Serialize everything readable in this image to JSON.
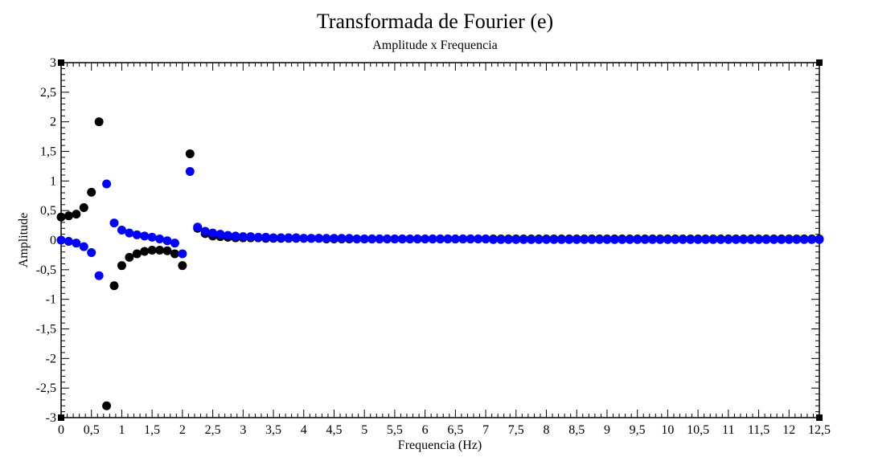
{
  "chart_data": {
    "type": "scatter",
    "title": "Transformada de Fourier (e)",
    "subtitle": "Amplitude x Frequencia",
    "xlabel": "Frequencia (Hz)",
    "ylabel": "Amplitude",
    "xlim": [
      0,
      12.5
    ],
    "ylim": [
      -3,
      3
    ],
    "x_ticks": [
      0,
      0.5,
      1,
      1.5,
      2,
      2.5,
      3,
      3.5,
      4,
      4.5,
      5,
      5.5,
      6,
      6.5,
      7,
      7.5,
      8,
      8.5,
      9,
      9.5,
      10,
      10.5,
      11,
      11.5,
      12,
      12.5
    ],
    "x_tick_labels": [
      "0",
      "0,5",
      "1",
      "1,5",
      "2",
      "2,5",
      "3",
      "3,5",
      "4",
      "4,5",
      "5",
      "5,5",
      "6",
      "6,5",
      "7",
      "7,5",
      "8",
      "8,5",
      "9",
      "9,5",
      "10",
      "10,5",
      "11",
      "11,5",
      "12",
      "12,5"
    ],
    "y_ticks": [
      3,
      2.5,
      2,
      1.5,
      1,
      0.5,
      0,
      -0.5,
      -1,
      -1.5,
      -2,
      -2.5,
      -3
    ],
    "y_tick_labels": [
      "3",
      "2,5",
      "2",
      "1,5",
      "1",
      "0,5",
      "0",
      "-0,5",
      "-1",
      "-1,5",
      "-2",
      "-2,5",
      "-3"
    ],
    "grid": false,
    "x_step": 0.125,
    "series": [
      {
        "color": "#000000",
        "values": [
          0.39,
          0.41,
          0.44,
          0.55,
          0.81,
          2.0,
          -2.8,
          -0.77,
          -0.43,
          -0.29,
          -0.23,
          -0.19,
          -0.17,
          -0.17,
          -0.18,
          -0.23,
          -0.43,
          1.46,
          0.2,
          0.11,
          0.07,
          0.06,
          0.05,
          0.04,
          0.04,
          0.04,
          0.04,
          0.03,
          0.03,
          0.03,
          0.03,
          0.03,
          0.03,
          0.03,
          0.03,
          0.02,
          0.02,
          0.02,
          0.02,
          0.02,
          0.02,
          0.02,
          0.02,
          0.02,
          0.02,
          0.02,
          0.02,
          0.02,
          0.02,
          0.02,
          0.02,
          0.02,
          0.02,
          0.02,
          0.02,
          0.02,
          0.02,
          0.02,
          0.02,
          0.02,
          0.02,
          0.02,
          0.02,
          0.02,
          0.02,
          0.02,
          0.02,
          0.02,
          0.02,
          0.02,
          0.02,
          0.02,
          0.02,
          0.02,
          0.02,
          0.02,
          0.02,
          0.02,
          0.02,
          0.02,
          0.02,
          0.02,
          0.02,
          0.02,
          0.02,
          0.02,
          0.02,
          0.02,
          0.02,
          0.02,
          0.02,
          0.02,
          0.02,
          0.02,
          0.02,
          0.02,
          0.02,
          0.02,
          0.02,
          0.02,
          0.02
        ]
      },
      {
        "color": "#0000ff",
        "values": [
          0.0,
          -0.02,
          -0.05,
          -0.11,
          -0.21,
          -0.6,
          0.95,
          0.29,
          0.17,
          0.12,
          0.09,
          0.07,
          0.05,
          0.02,
          -0.01,
          -0.05,
          -0.23,
          1.16,
          0.22,
          0.15,
          0.12,
          0.1,
          0.08,
          0.07,
          0.06,
          0.06,
          0.05,
          0.05,
          0.04,
          0.04,
          0.04,
          0.04,
          0.03,
          0.03,
          0.03,
          0.03,
          0.03,
          0.03,
          0.03,
          0.02,
          0.02,
          0.02,
          0.02,
          0.02,
          0.02,
          0.02,
          0.02,
          0.02,
          0.02,
          0.02,
          0.02,
          0.02,
          0.02,
          0.02,
          0.02,
          0.02,
          0.02,
          0.01,
          0.01,
          0.01,
          0.01,
          0.01,
          0.01,
          0.01,
          0.01,
          0.01,
          0.01,
          0.01,
          0.01,
          0.01,
          0.01,
          0.01,
          0.01,
          0.01,
          0.01,
          0.01,
          0.01,
          0.01,
          0.01,
          0.01,
          0.01,
          0.01,
          0.01,
          0.01,
          0.01,
          0.01,
          0.01,
          0.01,
          0.01,
          0.01,
          0.01,
          0.01,
          0.01,
          0.01,
          0.01,
          0.01,
          0.01,
          0.01,
          0.01,
          0.01,
          0.01
        ]
      }
    ]
  }
}
